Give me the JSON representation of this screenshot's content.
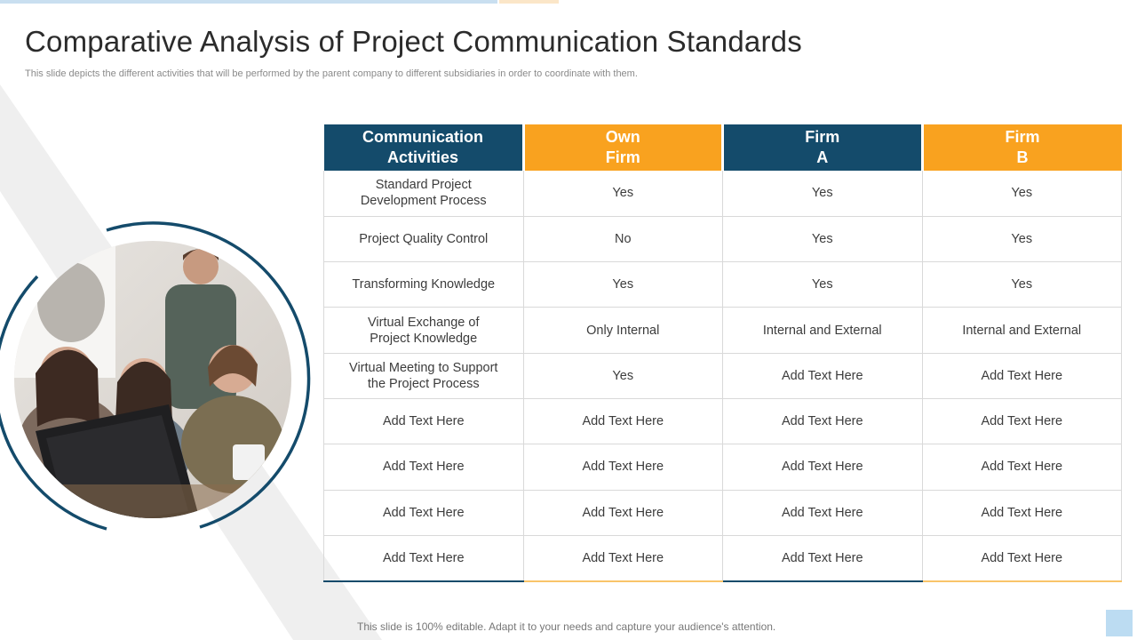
{
  "header": {
    "title": "Comparative Analysis of Project Communication Standards",
    "subtitle": "This slide depicts the different activities that will be performed by the parent company to different subsidiaries in order to coordinate with them."
  },
  "image": {
    "alt": "team-photo"
  },
  "table": {
    "headers": [
      [
        "Communication",
        "Activities"
      ],
      [
        "Own",
        "Firm"
      ],
      [
        "Firm",
        "A"
      ],
      [
        "Firm",
        "B"
      ]
    ],
    "rows": [
      [
        [
          "Standard Project",
          "Development Process"
        ],
        [
          "Yes"
        ],
        [
          "Yes"
        ],
        [
          "Yes"
        ]
      ],
      [
        [
          "Project Quality Control"
        ],
        [
          "No"
        ],
        [
          "Yes"
        ],
        [
          "Yes"
        ]
      ],
      [
        [
          "Transforming Knowledge"
        ],
        [
          "Yes"
        ],
        [
          "Yes"
        ],
        [
          "Yes"
        ]
      ],
      [
        [
          "Virtual Exchange of",
          "Project Knowledge"
        ],
        [
          "Only Internal"
        ],
        [
          "Internal and External"
        ],
        [
          "Internal and External"
        ]
      ],
      [
        [
          "Virtual Meeting to Support",
          "the Project Process"
        ],
        [
          "Yes"
        ],
        [
          "Add Text Here"
        ],
        [
          "Add Text Here"
        ]
      ],
      [
        [
          "Add Text Here"
        ],
        [
          "Add Text Here"
        ],
        [
          "Add Text Here"
        ],
        [
          "Add Text Here"
        ]
      ],
      [
        [
          "Add Text Here"
        ],
        [
          "Add Text Here"
        ],
        [
          "Add Text Here"
        ],
        [
          "Add Text Here"
        ]
      ],
      [
        [
          "Add Text Here"
        ],
        [
          "Add Text Here"
        ],
        [
          "Add Text Here"
        ],
        [
          "Add Text Here"
        ]
      ],
      [
        [
          "Add Text Here"
        ],
        [
          "Add Text Here"
        ],
        [
          "Add Text Here"
        ],
        [
          "Add Text Here"
        ]
      ]
    ]
  },
  "footer": {
    "text": "This slide is 100% editable. Adapt it to your needs and capture your audience's attention."
  },
  "colors": {
    "navy": "#144b6b",
    "orange": "#f9a21f",
    "accent_light_blue": "#bcdcf2"
  }
}
